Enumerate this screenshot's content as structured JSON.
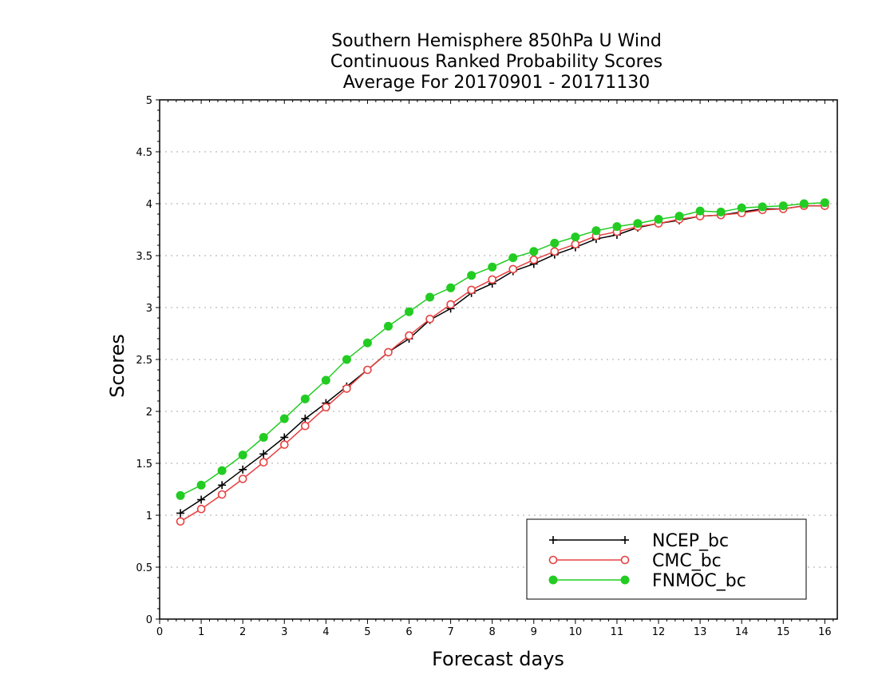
{
  "chart_data": {
    "type": "line",
    "title_lines": [
      "Southern Hemisphere 850hPa U Wind",
      "Continuous Ranked Probability Scores",
      "Average For 20170901 - 20171130"
    ],
    "xlabel": "Forecast days",
    "ylabel": "Scores",
    "xlim": [
      0,
      16.3
    ],
    "ylim": [
      0,
      5
    ],
    "xticks": [
      0,
      1,
      2,
      3,
      4,
      5,
      6,
      7,
      8,
      9,
      10,
      11,
      12,
      13,
      14,
      15,
      16
    ],
    "yticks": [
      0,
      0.5,
      1,
      1.5,
      2,
      2.5,
      3,
      3.5,
      4,
      4.5,
      5
    ],
    "ytick_labels": [
      "0",
      "0.5",
      "1",
      "1.5",
      "2",
      "2.5",
      "3",
      "3.5",
      "4",
      "4.5",
      "5"
    ],
    "grid": "horizontal dotted",
    "legend_position": "bottom-right",
    "x": [
      0.5,
      1,
      1.5,
      2,
      2.5,
      3,
      3.5,
      4,
      4.5,
      5,
      5.5,
      6,
      6.5,
      7,
      7.5,
      8,
      8.5,
      9,
      9.5,
      10,
      10.5,
      11,
      11.5,
      12,
      12.5,
      13,
      13.5,
      14,
      14.5,
      15,
      15.5,
      16
    ],
    "series": [
      {
        "name": "NCEP_bc",
        "color": "#000000",
        "marker": "plus",
        "values": [
          1.02,
          1.15,
          1.29,
          1.44,
          1.59,
          1.75,
          1.93,
          2.08,
          2.24,
          2.4,
          2.57,
          2.7,
          2.88,
          2.99,
          3.14,
          3.23,
          3.35,
          3.42,
          3.51,
          3.58,
          3.66,
          3.7,
          3.77,
          3.81,
          3.84,
          3.88,
          3.89,
          3.92,
          3.95,
          3.95,
          3.98,
          3.98
        ]
      },
      {
        "name": "CMC_bc",
        "color": "#e84040",
        "marker": "open-circle",
        "values": [
          0.94,
          1.06,
          1.2,
          1.35,
          1.51,
          1.68,
          1.86,
          2.04,
          2.22,
          2.4,
          2.57,
          2.73,
          2.89,
          3.03,
          3.17,
          3.27,
          3.37,
          3.46,
          3.54,
          3.61,
          3.69,
          3.73,
          3.78,
          3.81,
          3.85,
          3.88,
          3.89,
          3.91,
          3.94,
          3.95,
          3.98,
          3.98
        ]
      },
      {
        "name": "FNMOC_bc",
        "color": "#22cc22",
        "marker": "filled-circle",
        "values": [
          1.19,
          1.29,
          1.43,
          1.58,
          1.75,
          1.93,
          2.12,
          2.3,
          2.5,
          2.66,
          2.82,
          2.96,
          3.1,
          3.19,
          3.31,
          3.39,
          3.48,
          3.54,
          3.62,
          3.68,
          3.74,
          3.78,
          3.81,
          3.85,
          3.88,
          3.93,
          3.92,
          3.96,
          3.97,
          3.98,
          4.0,
          4.01
        ]
      }
    ]
  }
}
